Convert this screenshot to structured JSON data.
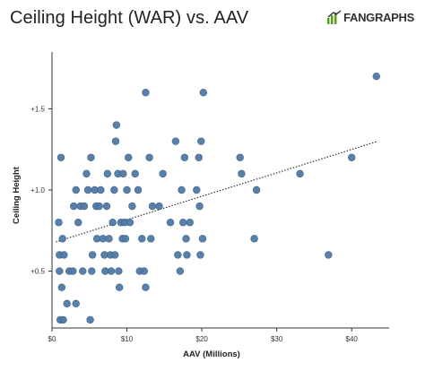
{
  "header": {
    "title": "Ceiling Height (WAR) vs. AAV",
    "brand": "FANGRAPHS"
  },
  "colors": {
    "point_fill": "#4f79a3",
    "point_stroke": "#3d6590",
    "trendline": "#333333",
    "axis": "#333333",
    "brand_green": "#56a318"
  },
  "icons": {
    "brand": "fangraphs-logo-icon"
  },
  "chart_data": {
    "type": "scatter",
    "title": "Ceiling Height (WAR) vs. AAV",
    "xlabel": "AAV (Millions)",
    "ylabel": "Ceiling Height",
    "xlim": [
      0,
      45
    ],
    "ylim": [
      0.15,
      1.85
    ],
    "xticks": [
      {
        "value": 0,
        "label": "$0"
      },
      {
        "value": 10,
        "label": "$10"
      },
      {
        "value": 20,
        "label": "$20"
      },
      {
        "value": 30,
        "label": "$30"
      },
      {
        "value": 40,
        "label": "$40"
      }
    ],
    "yticks": [
      {
        "value": 0.5,
        "label": "+0.5"
      },
      {
        "value": 1.0,
        "label": "+1.0"
      },
      {
        "value": 1.5,
        "label": "+1.5"
      }
    ],
    "grid": false,
    "trendline": {
      "style": "dotted",
      "points": [
        [
          0.5,
          0.68
        ],
        [
          43.5,
          1.3
        ]
      ]
    },
    "points": [
      [
        0.9,
        0.8
      ],
      [
        1.2,
        1.2
      ],
      [
        1.0,
        0.6
      ],
      [
        1.4,
        0.7
      ],
      [
        1.6,
        0.6
      ],
      [
        1.0,
        0.5
      ],
      [
        1.3,
        0.4
      ],
      [
        1.1,
        0.2
      ],
      [
        1.5,
        0.2
      ],
      [
        2.0,
        0.3
      ],
      [
        2.3,
        0.5
      ],
      [
        3.2,
        0.3
      ],
      [
        2.8,
        0.5
      ],
      [
        2.9,
        0.9
      ],
      [
        3.2,
        1.0
      ],
      [
        3.5,
        0.8
      ],
      [
        3.8,
        0.9
      ],
      [
        4.1,
        0.5
      ],
      [
        4.3,
        0.9
      ],
      [
        4.6,
        1.1
      ],
      [
        4.8,
        1.0
      ],
      [
        5.1,
        0.2
      ],
      [
        5.3,
        0.5
      ],
      [
        5.4,
        0.6
      ],
      [
        5.2,
        1.2
      ],
      [
        5.7,
        1.0
      ],
      [
        5.9,
        0.9
      ],
      [
        6.0,
        0.7
      ],
      [
        6.3,
        0.9
      ],
      [
        6.5,
        1.0
      ],
      [
        6.8,
        0.7
      ],
      [
        7.0,
        0.6
      ],
      [
        7.1,
        0.5
      ],
      [
        7.3,
        0.9
      ],
      [
        7.4,
        1.1
      ],
      [
        7.6,
        0.7
      ],
      [
        7.8,
        0.6
      ],
      [
        7.9,
        0.5
      ],
      [
        8.1,
        0.8
      ],
      [
        8.3,
        1.0
      ],
      [
        8.4,
        0.6
      ],
      [
        8.5,
        1.3
      ],
      [
        8.6,
        1.4
      ],
      [
        8.8,
        1.1
      ],
      [
        8.9,
        0.5
      ],
      [
        9.0,
        0.4
      ],
      [
        9.2,
        0.8
      ],
      [
        9.4,
        0.7
      ],
      [
        9.5,
        1.1
      ],
      [
        9.7,
        0.8
      ],
      [
        9.8,
        0.7
      ],
      [
        10.0,
        1.0
      ],
      [
        10.2,
        1.2
      ],
      [
        10.4,
        0.8
      ],
      [
        10.7,
        0.9
      ],
      [
        11.1,
        1.1
      ],
      [
        11.5,
        1.0
      ],
      [
        11.7,
        0.5
      ],
      [
        12.0,
        0.7
      ],
      [
        12.3,
        0.5
      ],
      [
        12.5,
        1.6
      ],
      [
        12.5,
        0.4
      ],
      [
        13.0,
        1.2
      ],
      [
        13.2,
        0.7
      ],
      [
        13.4,
        0.9
      ],
      [
        14.3,
        0.9
      ],
      [
        14.8,
        1.1
      ],
      [
        15.8,
        0.8
      ],
      [
        16.5,
        1.3
      ],
      [
        16.8,
        0.6
      ],
      [
        17.1,
        0.5
      ],
      [
        17.3,
        1.0
      ],
      [
        17.5,
        0.8
      ],
      [
        17.7,
        1.2
      ],
      [
        17.9,
        0.7
      ],
      [
        18.0,
        0.6
      ],
      [
        18.4,
        0.8
      ],
      [
        19.3,
        1.0
      ],
      [
        19.6,
        1.2
      ],
      [
        19.7,
        0.9
      ],
      [
        19.9,
        1.3
      ],
      [
        19.8,
        0.6
      ],
      [
        20.1,
        0.7
      ],
      [
        20.2,
        1.6
      ],
      [
        25.1,
        1.2
      ],
      [
        25.3,
        1.1
      ],
      [
        27.0,
        0.7
      ],
      [
        27.3,
        1.0
      ],
      [
        33.1,
        1.1
      ],
      [
        36.9,
        0.6
      ],
      [
        40.0,
        1.2
      ],
      [
        43.3,
        1.7
      ]
    ]
  }
}
